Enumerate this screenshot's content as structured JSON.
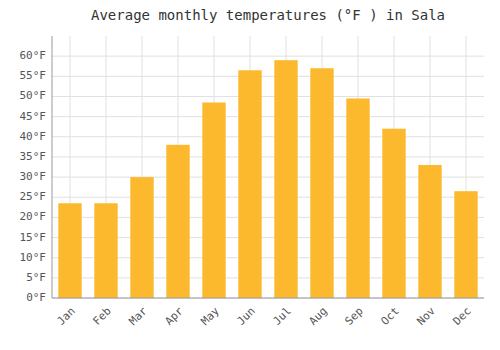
{
  "chart_data": {
    "type": "bar",
    "title": "Average monthly temperatures (°F ) in Sala",
    "categories": [
      "Jan",
      "Feb",
      "Mar",
      "Apr",
      "May",
      "Jun",
      "Jul",
      "Aug",
      "Sep",
      "Oct",
      "Nov",
      "Dec"
    ],
    "values": [
      23.5,
      23.5,
      30.0,
      38.0,
      48.5,
      56.5,
      59.0,
      57.0,
      49.5,
      42.0,
      33.0,
      26.5
    ],
    "color": "#FDB92E",
    "ylim": [
      0,
      65
    ],
    "yticks": [
      {
        "value": 0,
        "label": "0°F"
      },
      {
        "value": 5,
        "label": "5°F"
      },
      {
        "value": 10,
        "label": "10°F"
      },
      {
        "value": 15,
        "label": "15°F"
      },
      {
        "value": 20,
        "label": "20°F"
      },
      {
        "value": 25,
        "label": "25°F"
      },
      {
        "value": 30,
        "label": "30°F"
      },
      {
        "value": 35,
        "label": "35°F"
      },
      {
        "value": 40,
        "label": "40°F"
      },
      {
        "value": 45,
        "label": "45°F"
      },
      {
        "value": 50,
        "label": "50°F"
      },
      {
        "value": 55,
        "label": "55°F"
      },
      {
        "value": 60,
        "label": "60°F"
      }
    ],
    "grid": true
  }
}
